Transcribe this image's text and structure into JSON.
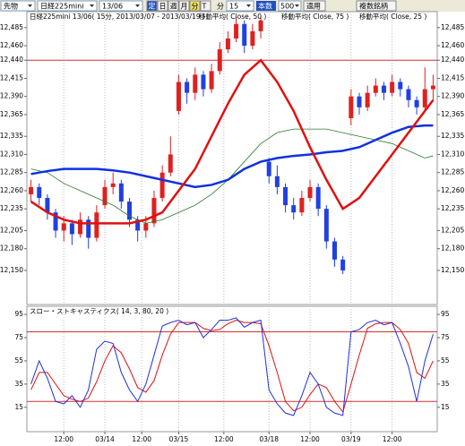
{
  "toolbar": {
    "market": "先物",
    "symbol": "日経225mini",
    "contract": "13/06",
    "buttons": [
      "定",
      "日",
      "週",
      "月",
      "分",
      "T"
    ],
    "unit": "分",
    "interval": "15",
    "count_label": "本数",
    "count": "500",
    "apply": "適用",
    "multi": "複数銘柄"
  },
  "chart_data": [
    {
      "type": "candlestick",
      "title": "日経225mini 13/06( 15分, 2013/03/07 - 2013/03/19 )",
      "xlim": [
        -0.5,
        49.5
      ],
      "open": [
        12255,
        12265,
        12250,
        12230,
        12205,
        12215,
        12200,
        12220,
        12195,
        12240,
        12265,
        12270,
        12245,
        12220,
        12205,
        12215,
        12250,
        12285,
        12370,
        12410,
        12395,
        12420,
        12400,
        12425,
        12455,
        12470,
        12490,
        12460,
        12480,
        12300,
        12280,
        12265,
        12240,
        12230,
        12250,
        12265,
        12235,
        12190,
        12165,
        12360,
        12390,
        12375,
        12395,
        12405,
        12395,
        12410,
        12400,
        12385,
        12375,
        12400
      ],
      "high": [
        12275,
        12270,
        12255,
        12235,
        12225,
        12220,
        12230,
        12225,
        12240,
        12275,
        12285,
        12275,
        12250,
        12225,
        12225,
        12260,
        12295,
        12335,
        12420,
        12415,
        12430,
        12425,
        12435,
        12465,
        12480,
        12500,
        12495,
        12490,
        12500,
        12305,
        12295,
        12270,
        12250,
        12260,
        12275,
        12270,
        12240,
        12195,
        12170,
        12400,
        12395,
        12405,
        12415,
        12410,
        12420,
        12415,
        12405,
        12390,
        12430,
        12420
      ],
      "low": [
        12245,
        12240,
        12220,
        12195,
        12190,
        12185,
        12195,
        12180,
        12190,
        12235,
        12255,
        12235,
        12210,
        12190,
        12195,
        12210,
        12245,
        12280,
        12365,
        12380,
        12385,
        12390,
        12395,
        12420,
        12450,
        12465,
        12450,
        12455,
        12470,
        12270,
        12255,
        12230,
        12220,
        12225,
        12245,
        12225,
        12180,
        12155,
        12145,
        12350,
        12365,
        12370,
        12390,
        12385,
        12390,
        12390,
        12375,
        12365,
        12370,
        12385
      ],
      "close": [
        12265,
        12250,
        12230,
        12205,
        12215,
        12200,
        12220,
        12195,
        12230,
        12265,
        12270,
        12245,
        12220,
        12205,
        12215,
        12250,
        12285,
        12310,
        12410,
        12395,
        12420,
        12400,
        12425,
        12455,
        12470,
        12490,
        12460,
        12480,
        12495,
        12280,
        12265,
        12240,
        12230,
        12250,
        12265,
        12235,
        12190,
        12165,
        12150,
        12390,
        12375,
        12395,
        12405,
        12395,
        12410,
        12400,
        12385,
        12375,
        12400,
        12405
      ],
      "up_color": "#e02020",
      "down_color": "#2040e0",
      "series": [
        {
          "name": "移動平均( Close, 50 )",
          "color": "#2a7a2a",
          "width": 0.8,
          "x": [
            0,
            2,
            4,
            6,
            8,
            10,
            12,
            14,
            16,
            18,
            20,
            22,
            24,
            26,
            28,
            30,
            32,
            34,
            36,
            38,
            40,
            42,
            44,
            46,
            48,
            49
          ],
          "values": [
            12290,
            12285,
            12270,
            12260,
            12250,
            12240,
            12225,
            12215,
            12220,
            12230,
            12240,
            12255,
            12275,
            12300,
            12325,
            12340,
            12345,
            12345,
            12345,
            12340,
            12335,
            12330,
            12325,
            12315,
            12305,
            12308
          ]
        },
        {
          "name": "移動平均( Close, 75 )",
          "color": "#1030e0",
          "width": 2.5,
          "x": [
            0,
            2,
            4,
            6,
            8,
            10,
            12,
            14,
            16,
            18,
            20,
            22,
            24,
            26,
            28,
            30,
            32,
            34,
            36,
            38,
            40,
            42,
            44,
            46,
            48,
            49
          ],
          "values": [
            12283,
            12287,
            12290,
            12290,
            12290,
            12288,
            12285,
            12280,
            12275,
            12270,
            12265,
            12268,
            12275,
            12290,
            12300,
            12305,
            12308,
            12310,
            12313,
            12315,
            12320,
            12330,
            12340,
            12348,
            12350,
            12350
          ]
        },
        {
          "name": "移動平均( Close, 25 )",
          "color": "#e01010",
          "width": 2.5,
          "x": [
            0,
            2,
            4,
            6,
            8,
            10,
            12,
            14,
            16,
            18,
            20,
            22,
            24,
            26,
            28,
            30,
            32,
            34,
            36,
            38,
            40,
            42,
            44,
            46,
            48,
            49
          ],
          "values": [
            12245,
            12230,
            12220,
            12215,
            12215,
            12215,
            12215,
            12220,
            12230,
            12260,
            12290,
            12335,
            12380,
            12420,
            12440,
            12410,
            12370,
            12320,
            12275,
            12235,
            12250,
            12280,
            12310,
            12340,
            12370,
            12385
          ]
        }
      ],
      "hlines": [
        12440
      ],
      "hline_color": "#d03030",
      "ylim": [
        12103,
        12507
      ],
      "yticks": [
        {
          "value": 12150,
          "label": "12,150"
        },
        {
          "value": 12180,
          "label": "12,180"
        },
        {
          "value": 12205,
          "label": "12,205"
        },
        {
          "value": 12235,
          "label": "12,235"
        },
        {
          "value": 12260,
          "label": "12,260"
        },
        {
          "value": 12285,
          "label": "12,285"
        },
        {
          "value": 12310,
          "label": "12,310"
        },
        {
          "value": 12335,
          "label": "12,335"
        },
        {
          "value": 12365,
          "label": "12,365"
        },
        {
          "value": 12390,
          "label": "12,390"
        },
        {
          "value": 12415,
          "label": "12,415"
        },
        {
          "value": 12440,
          "label": "12,440"
        },
        {
          "value": 12460,
          "label": "12,460"
        },
        {
          "value": 12485,
          "label": "12,485"
        }
      ]
    },
    {
      "type": "line",
      "title": "スロー・ストキャスティクス( 14, 3, 80, 20 )",
      "xlim": [
        -0.5,
        49.5
      ],
      "series": [
        {
          "color": "#e01010",
          "values": [
            30,
            45,
            45,
            35,
            25,
            22,
            20,
            23,
            37,
            55,
            68,
            62,
            48,
            32,
            28,
            38,
            60,
            78,
            88,
            88,
            88,
            83,
            81,
            82,
            87,
            90,
            88,
            88,
            87,
            68,
            45,
            20,
            12,
            15,
            26,
            35,
            32,
            20,
            11,
            35,
            60,
            83,
            87,
            88,
            88,
            82,
            70,
            45,
            40,
            55
          ]
        },
        {
          "color": "#2030e0",
          "values": [
            35,
            55,
            40,
            20,
            18,
            25,
            15,
            30,
            65,
            72,
            70,
            45,
            30,
            20,
            35,
            60,
            85,
            88,
            90,
            86,
            88,
            75,
            82,
            90,
            90,
            92,
            84,
            88,
            90,
            30,
            18,
            10,
            8,
            25,
            45,
            35,
            15,
            10,
            8,
            80,
            82,
            88,
            90,
            86,
            88,
            70,
            50,
            20,
            55,
            78
          ]
        }
      ],
      "hlines": [
        80,
        20
      ],
      "hline_color": "#d03030",
      "ylim": [
        -6,
        102
      ],
      "yticks": [
        15,
        35,
        55,
        75,
        95
      ],
      "xticks": [
        {
          "value": 4,
          "label": "12:00"
        },
        {
          "value": 9,
          "label": "03/14"
        },
        {
          "value": 13.5,
          "label": "12:00"
        },
        {
          "value": 18,
          "label": "03/15"
        },
        {
          "value": 23.5,
          "label": "12:00"
        },
        {
          "value": 29,
          "label": "03/18"
        },
        {
          "value": 34,
          "label": "12:00"
        },
        {
          "value": 39,
          "label": "03/19"
        },
        {
          "value": 44,
          "label": "12:00"
        }
      ]
    }
  ]
}
